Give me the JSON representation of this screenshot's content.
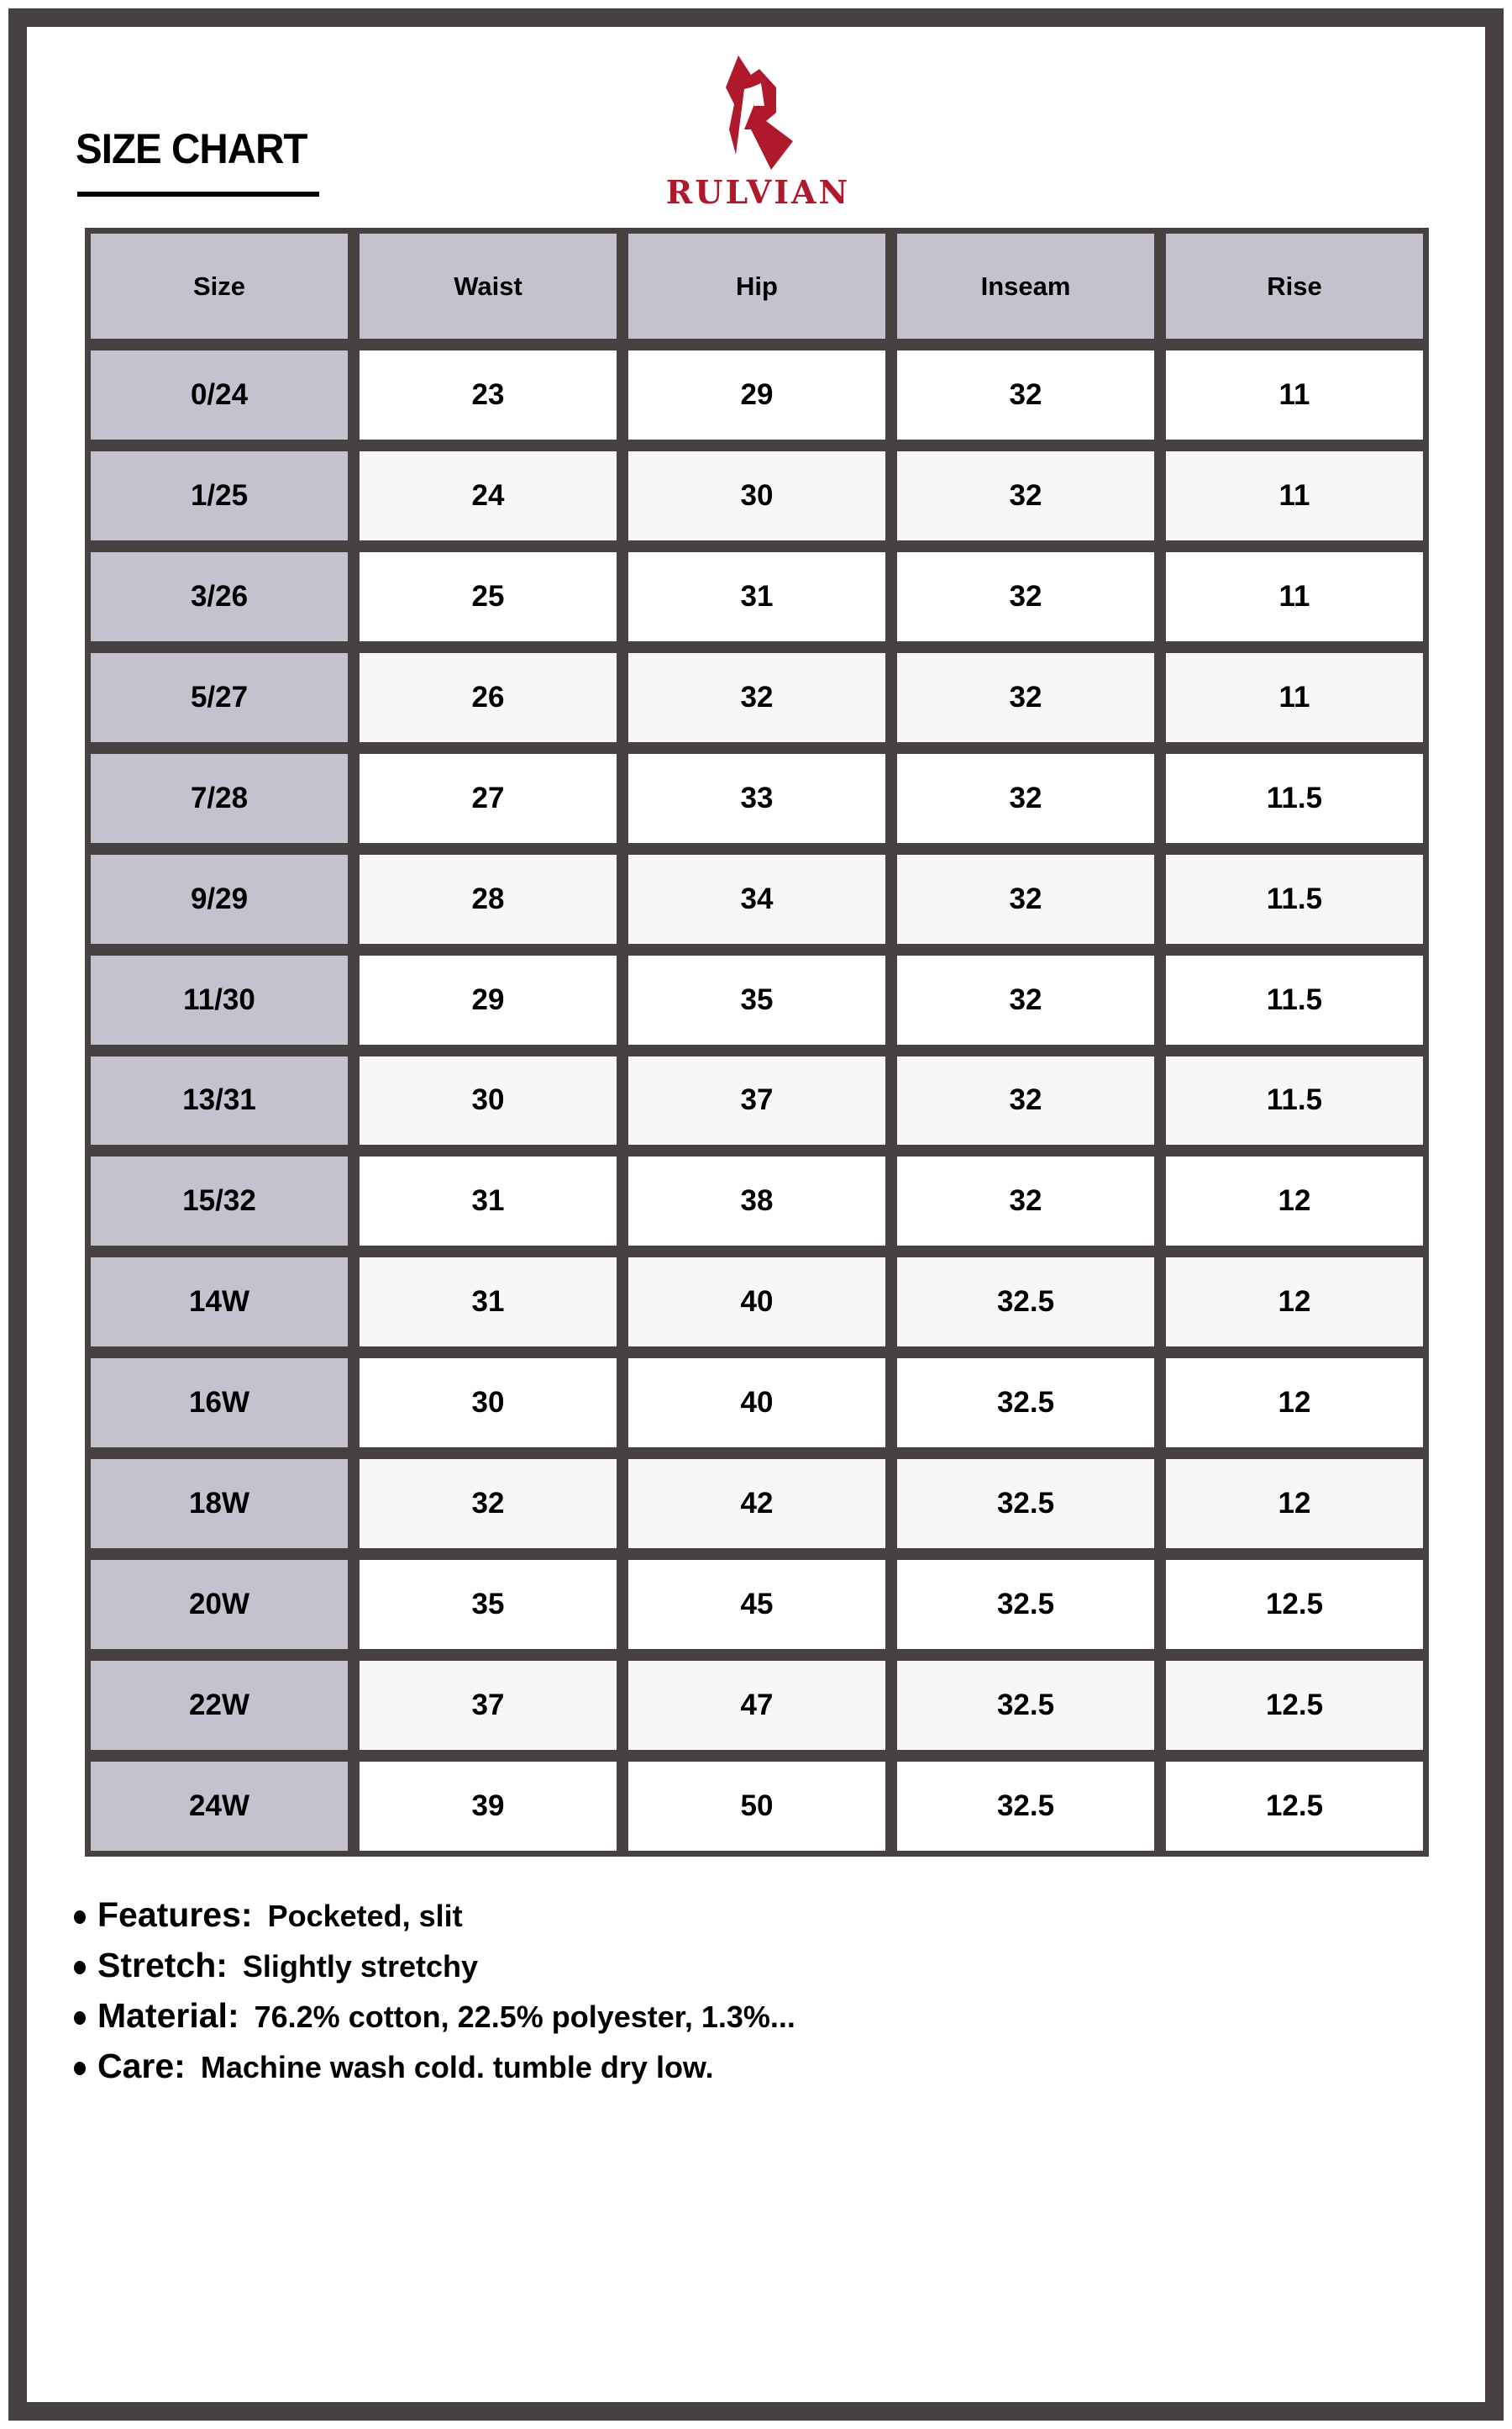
{
  "title": "SIZE CHART",
  "brand": {
    "name": "RULVIAN",
    "color": "#b0182b"
  },
  "colors": {
    "frame": "#474142",
    "header_bg": "#c4c2cf",
    "alt_row": "#f7f7f7"
  },
  "table": {
    "headers": [
      "Size",
      "Waist",
      "Hip",
      "Inseam",
      "Rise"
    ],
    "rows": [
      [
        "0/24",
        "23",
        "29",
        "32",
        "11"
      ],
      [
        "1/25",
        "24",
        "30",
        "32",
        "11"
      ],
      [
        "3/26",
        "25",
        "31",
        "32",
        "11"
      ],
      [
        "5/27",
        "26",
        "32",
        "32",
        "11"
      ],
      [
        "7/28",
        "27",
        "33",
        "32",
        "11.5"
      ],
      [
        "9/29",
        "28",
        "34",
        "32",
        "11.5"
      ],
      [
        "11/30",
        "29",
        "35",
        "32",
        "11.5"
      ],
      [
        "13/31",
        "30",
        "37",
        "32",
        "11.5"
      ],
      [
        "15/32",
        "31",
        "38",
        "32",
        "12"
      ],
      [
        "14W",
        "31",
        "40",
        "32.5",
        "12"
      ],
      [
        "16W",
        "30",
        "40",
        "32.5",
        "12"
      ],
      [
        "18W",
        "32",
        "42",
        "32.5",
        "12"
      ],
      [
        "20W",
        "35",
        "45",
        "32.5",
        "12.5"
      ],
      [
        "22W",
        "37",
        "47",
        "32.5",
        "12.5"
      ],
      [
        "24W",
        "39",
        "50",
        "32.5",
        "12.5"
      ]
    ]
  },
  "specs": [
    {
      "label": "Features:",
      "value": "Pocketed, slit"
    },
    {
      "label": "Stretch:",
      "value": "Slightly stretchy"
    },
    {
      "label": "Material:",
      "value": "76.2% cotton, 22.5% polyester, 1.3%..."
    },
    {
      "label": "Care:",
      "value": "Machine wash cold. tumble dry low."
    }
  ]
}
